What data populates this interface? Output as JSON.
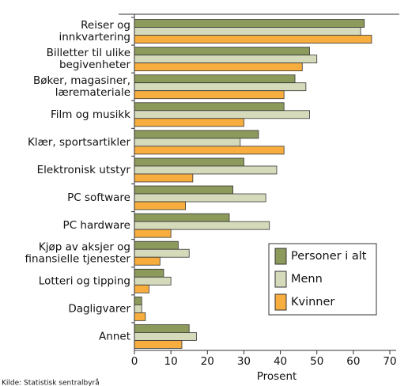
{
  "chart_data": {
    "type": "hbar",
    "categories": [
      "Reiser og\ninnkvartering",
      "Billetter til ulike\nbegivenheter",
      "Bøker, magasiner,\nlæremateriale",
      "Film og musikk",
      "Klær, sportsartikler",
      "Elektronisk utstyr",
      "PC software",
      "PC hardware",
      "Kjøp av aksjer og\nfinansielle tjenester",
      "Lotteri og tipping",
      "Dagligvarer",
      "Annet"
    ],
    "series": [
      {
        "name": "Personer i alt",
        "color": "#8c9a5b",
        "values": [
          63,
          48,
          44,
          41,
          34,
          30,
          27,
          26,
          12,
          8,
          2,
          15
        ]
      },
      {
        "name": "Menn",
        "color": "#d5dabb",
        "values": [
          62,
          50,
          47,
          48,
          29,
          39,
          36,
          37,
          15,
          10,
          2,
          17
        ]
      },
      {
        "name": "Kvinner",
        "color": "#f7ae3e",
        "values": [
          65,
          46,
          41,
          30,
          41,
          16,
          14,
          10,
          7,
          4,
          3,
          13
        ]
      }
    ],
    "x_label": "Prosent",
    "xlim": [
      0,
      70
    ],
    "xticks": [
      0,
      10,
      20,
      30,
      40,
      50,
      60,
      70
    ],
    "legend": "lower right",
    "note": "Kilde: Statistisk sentralbyrå"
  }
}
